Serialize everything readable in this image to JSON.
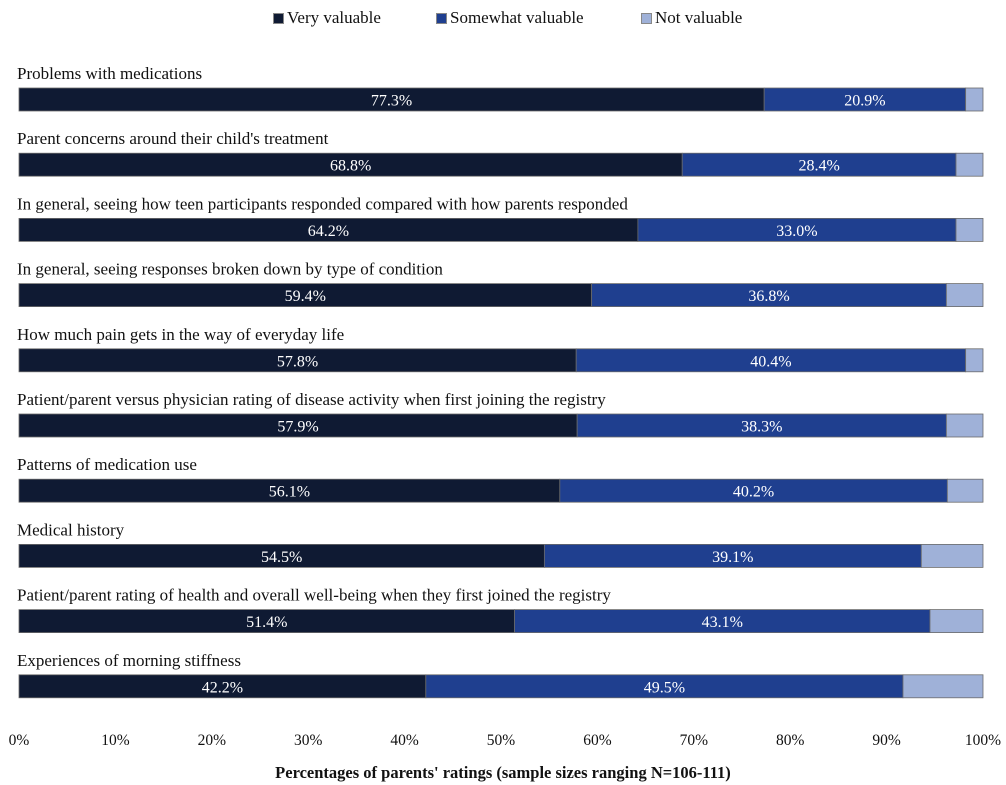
{
  "chart_data": {
    "type": "bar",
    "orientation": "horizontal",
    "stacked": true,
    "xlabel": "Percentages of parents' ratings (sample sizes ranging N=106-111)",
    "xlim": [
      0,
      100
    ],
    "x_ticks": [
      "0%",
      "10%",
      "20%",
      "30%",
      "40%",
      "50%",
      "60%",
      "70%",
      "80%",
      "90%",
      "100%"
    ],
    "grid": false,
    "legend_position": "top",
    "categories": [
      "Problems with medications",
      "Parent concerns around their child's treatment",
      "In general, seeing how teen participants responded compared with how parents responded",
      "In general, seeing responses broken down by type of condition",
      "How much pain gets in the way of everyday life",
      "Patient/parent versus physician rating of disease activity when first joining the registry",
      "Patterns of medication use",
      "Medical history",
      "Patient/parent rating of health and overall well-being when they first joined the registry",
      "Experiences of morning  stiffness"
    ],
    "series": [
      {
        "name": "Very valuable",
        "color": "#0f1a33",
        "values": [
          77.3,
          68.8,
          64.2,
          59.4,
          57.8,
          57.9,
          56.1,
          54.5,
          51.4,
          42.2
        ],
        "labels": [
          "77.3%",
          "68.8%",
          "64.2%",
          "59.4%",
          "57.8%",
          "57.9%",
          "56.1%",
          "54.5%",
          "51.4%",
          "42.2%"
        ]
      },
      {
        "name": "Somewhat valuable",
        "color": "#1f3f8f",
        "values": [
          20.9,
          28.4,
          33.0,
          36.8,
          40.4,
          38.3,
          40.2,
          39.1,
          43.1,
          49.5
        ],
        "labels": [
          "20.9%",
          "28.4%",
          "33.0%",
          "36.8%",
          "40.4%",
          "38.3%",
          "40.2%",
          "39.1%",
          "43.1%",
          "49.5%"
        ]
      },
      {
        "name": "Not valuable",
        "color": "#9fb1d8",
        "values": [
          1.8,
          2.8,
          2.8,
          3.8,
          1.8,
          3.8,
          3.7,
          6.4,
          5.5,
          8.3
        ]
      }
    ]
  }
}
